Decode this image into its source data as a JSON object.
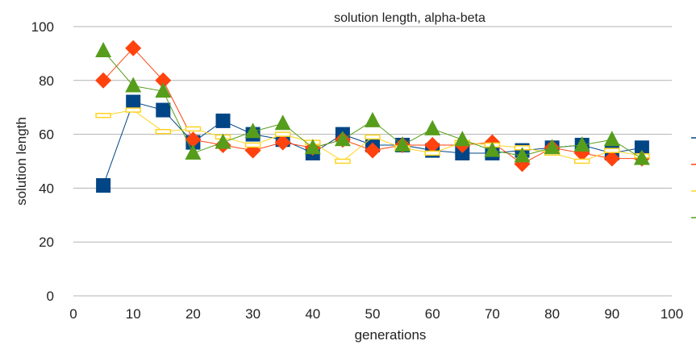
{
  "chart_data": {
    "type": "line",
    "title": "solution length, alpha-beta",
    "xlabel": "generations",
    "ylabel": "solution length",
    "xlim": [
      0,
      100
    ],
    "ylim": [
      0,
      100
    ],
    "xticks": [
      "0",
      "10",
      "20",
      "30",
      "40",
      "50",
      "60",
      "70",
      "80",
      "90",
      "100"
    ],
    "yticks": [
      "0",
      "20",
      "40",
      "60",
      "80",
      "100"
    ],
    "grid": "horizontal",
    "legend": "right, entries cut off",
    "x": [
      5,
      10,
      15,
      20,
      25,
      30,
      35,
      40,
      45,
      50,
      55,
      60,
      65,
      70,
      75,
      80,
      85,
      90,
      95
    ],
    "series": [
      {
        "color": "#004586",
        "marker": "square",
        "values": [
          41,
          72,
          69,
          57,
          65,
          60,
          58,
          53,
          60,
          56,
          56,
          54,
          53,
          53,
          54,
          55,
          56,
          53,
          55
        ]
      },
      {
        "color": "#ff420e",
        "marker": "diamond",
        "values": [
          80,
          92,
          80,
          58,
          56,
          54,
          57,
          55,
          58,
          54,
          56,
          56,
          56,
          57,
          49,
          55,
          53,
          51,
          51
        ]
      },
      {
        "color": "#ffd320",
        "marker": "dash",
        "values": [
          67,
          69,
          61,
          62,
          59,
          56,
          60,
          57,
          50,
          59,
          55,
          53,
          57,
          56,
          55,
          53,
          50,
          54,
          52
        ]
      },
      {
        "color": "#579d1c",
        "marker": "triangle",
        "values": [
          91,
          78,
          76,
          53,
          57,
          61,
          64,
          55,
          58,
          65,
          56,
          62,
          58,
          54,
          52,
          55,
          56,
          58,
          51
        ]
      }
    ]
  }
}
